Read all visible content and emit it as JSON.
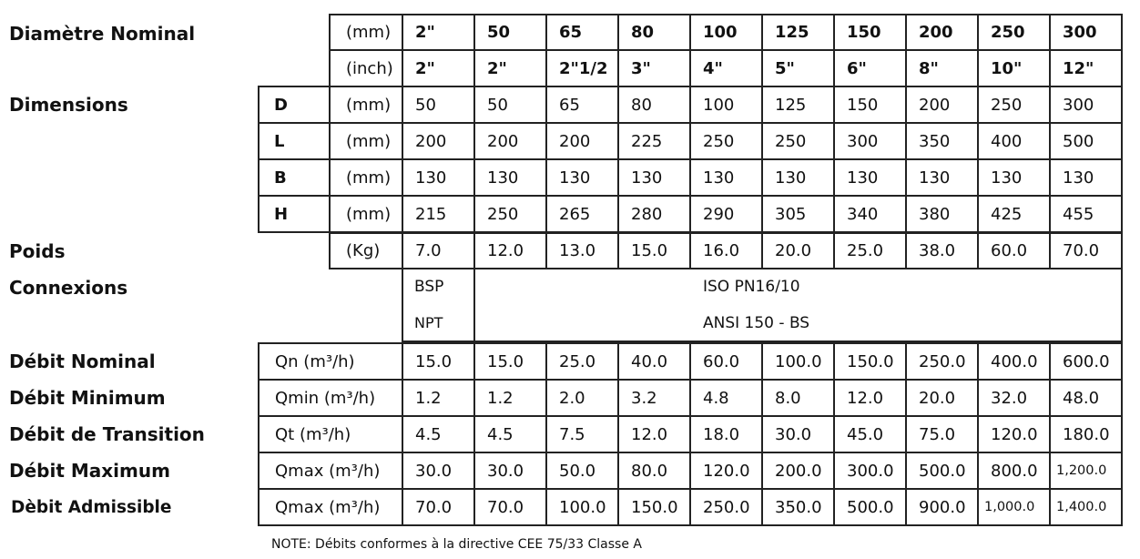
{
  "labels": {
    "diametre": "Diamètre Nominal",
    "dimensions": "Dimensions",
    "poids": "Poids",
    "connexions": "Connexions",
    "debit_nominal": "Débit Nominal",
    "debit_minimum": "Débit Minimum",
    "debit_transition": "Débit de Transition",
    "debit_maximum": "Débit Maximum",
    "debit_admissible": "Dèbit Admissible"
  },
  "upper_rows": [
    {
      "letter": "",
      "unit": "(mm)",
      "bold": true,
      "values": [
        "2\"",
        "50",
        "65",
        "80",
        "100",
        "125",
        "150",
        "200",
        "250",
        "300"
      ]
    },
    {
      "letter": "",
      "unit": "(inch)",
      "bold": true,
      "values": [
        "2\"",
        "2\"",
        "2\"1/2",
        "3\"",
        "4\"",
        "5\"",
        "6\"",
        "8\"",
        "10\"",
        "12\""
      ]
    },
    {
      "letter": "D",
      "unit": "(mm)",
      "values": [
        "50",
        "50",
        "65",
        "80",
        "100",
        "125",
        "150",
        "200",
        "250",
        "300"
      ]
    },
    {
      "letter": "L",
      "unit": "(mm)",
      "values": [
        "200",
        "200",
        "200",
        "225",
        "250",
        "250",
        "300",
        "350",
        "400",
        "500"
      ]
    },
    {
      "letter": "B",
      "unit": "(mm)",
      "values": [
        "130",
        "130",
        "130",
        "130",
        "130",
        "130",
        "130",
        "130",
        "130",
        "130"
      ]
    },
    {
      "letter": "H",
      "unit": "(mm)",
      "values": [
        "215",
        "250",
        "265",
        "280",
        "290",
        "305",
        "340",
        "380",
        "425",
        "455"
      ]
    },
    {
      "letter": "",
      "unit": "(Kg)",
      "values": [
        "7.0",
        "12.0",
        "13.0",
        "15.0",
        "16.0",
        "20.0",
        "25.0",
        "38.0",
        "60.0",
        "70.0"
      ]
    }
  ],
  "connexions": {
    "left": [
      "BSP",
      "NPT"
    ],
    "right": [
      "ISO PN16/10",
      "ANSI 150 - BS"
    ]
  },
  "lower_rows": [
    {
      "unit": "Qn (m³/h)",
      "values": [
        "15.0",
        "15.0",
        "25.0",
        "40.0",
        "60.0",
        "100.0",
        "150.0",
        "250.0",
        "400.0",
        "600.0"
      ]
    },
    {
      "unit": "Qmin (m³/h)",
      "values": [
        "1.2",
        "1.2",
        "2.0",
        "3.2",
        "4.8",
        "8.0",
        "12.0",
        "20.0",
        "32.0",
        "48.0"
      ]
    },
    {
      "unit": "Qt (m³/h)",
      "values": [
        "4.5",
        "4.5",
        "7.5",
        "12.0",
        "18.0",
        "30.0",
        "45.0",
        "75.0",
        "120.0",
        "180.0"
      ]
    },
    {
      "unit": "Qmax (m³/h)",
      "values": [
        "30.0",
        "30.0",
        "50.0",
        "80.0",
        "120.0",
        "200.0",
        "300.0",
        "500.0",
        "800.0",
        "1,200.0"
      ]
    },
    {
      "unit": "Qmax (m³/h)",
      "values": [
        "70.0",
        "70.0",
        "100.0",
        "150.0",
        "250.0",
        "350.0",
        "500.0",
        "900.0",
        "1,000.0",
        "1,400.0"
      ]
    }
  ],
  "note": "NOTE: Débits conformes à la directive CEE 75/33 Classe A"
}
